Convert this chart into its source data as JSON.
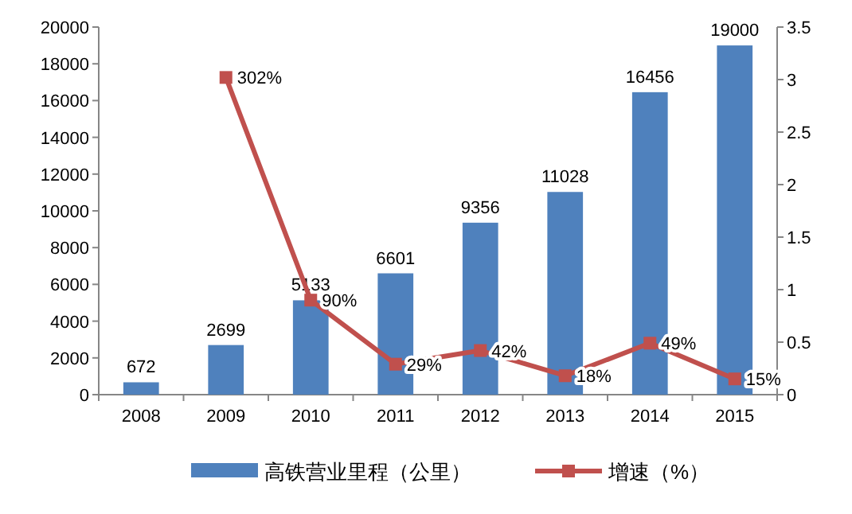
{
  "chart_data": {
    "type": "bar",
    "categories": [
      "2008",
      "2009",
      "2010",
      "2011",
      "2012",
      "2013",
      "2014",
      "2015"
    ],
    "series": [
      {
        "name": "高铁营业里程（公里）",
        "color": "#4f81bd",
        "values": [
          672,
          2699,
          5133,
          6601,
          9356,
          11028,
          16456,
          19000
        ]
      },
      {
        "name": "增速（%）",
        "type": "line",
        "axis": "y2",
        "color": "#c0504d",
        "marker": "square",
        "values": [
          null,
          3.02,
          0.9,
          0.29,
          0.42,
          0.18,
          0.49,
          0.15
        ],
        "value_labels": [
          null,
          "302%",
          "90%",
          "29%",
          "42%",
          "18%",
          "49%",
          "15%"
        ]
      }
    ],
    "ylim": [
      0,
      20000
    ],
    "yticks": [
      0,
      2000,
      4000,
      6000,
      8000,
      10000,
      12000,
      14000,
      16000,
      18000,
      20000
    ],
    "y2lim": [
      0,
      3.5
    ],
    "y2ticks": [
      0,
      0.5,
      1,
      1.5,
      2,
      2.5,
      3,
      3.5
    ],
    "data_labels": true,
    "legend": "bottom"
  }
}
